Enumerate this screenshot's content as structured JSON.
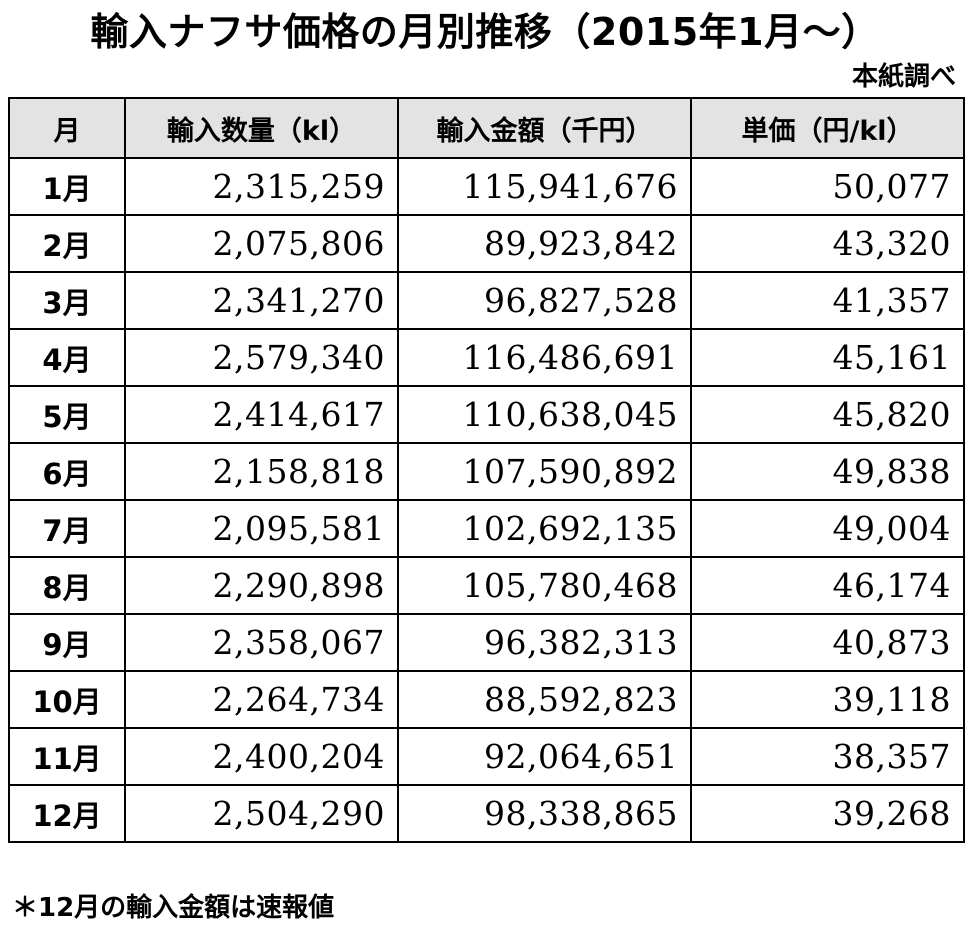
{
  "title": "輸入ナフサ価格の月別推移（2015年1月～）",
  "source": "本紙調べ",
  "table": {
    "headers": [
      "月",
      "輸入数量（kl）",
      "輸入金額（千円）",
      "単価（円/kl）"
    ],
    "rows": [
      [
        "1月",
        "2,315,259",
        "115,941,676",
        "50,077"
      ],
      [
        "2月",
        "2,075,806",
        "89,923,842",
        "43,320"
      ],
      [
        "3月",
        "2,341,270",
        "96,827,528",
        "41,357"
      ],
      [
        "4月",
        "2,579,340",
        "116,486,691",
        "45,161"
      ],
      [
        "5月",
        "2,414,617",
        "110,638,045",
        "45,820"
      ],
      [
        "6月",
        "2,158,818",
        "107,590,892",
        "49,838"
      ],
      [
        "7月",
        "2,095,581",
        "102,692,135",
        "49,004"
      ],
      [
        "8月",
        "2,290,898",
        "105,780,468",
        "46,174"
      ],
      [
        "9月",
        "2,358,067",
        "96,382,313",
        "40,873"
      ],
      [
        "10月",
        "2,264,734",
        "88,592,823",
        "39,118"
      ],
      [
        "11月",
        "2,400,204",
        "92,064,651",
        "38,357"
      ],
      [
        "12月",
        "2,504,290",
        "98,338,865",
        "39,268"
      ]
    ]
  },
  "footnote": "＊12月の輸入金額は速報値"
}
